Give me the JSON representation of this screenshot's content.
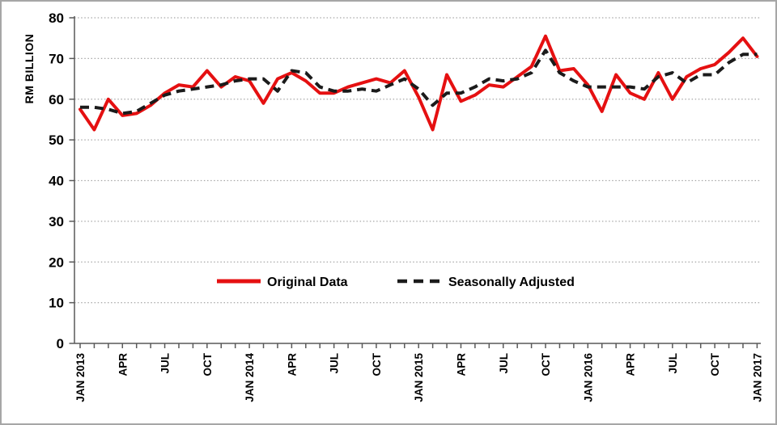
{
  "figure": {
    "background": "#ffffff",
    "border_color": "#a6a6a6"
  },
  "chart_data": {
    "type": "line",
    "title": "",
    "ylabel": "RM BILLION",
    "xlabel": "",
    "ylim": [
      0,
      80
    ],
    "y_ticks": [
      0,
      10,
      20,
      30,
      40,
      50,
      60,
      70,
      80
    ],
    "grid": "horizontal-dotted",
    "grid_color": "#a8a8a8",
    "axis_color": "#595959",
    "n_points": 49,
    "x_frequency": "monthly",
    "x_range": [
      "JAN 2013",
      "JAN 2017"
    ],
    "x_ticks": [
      {
        "index": 0,
        "label": "JAN 2013"
      },
      {
        "index": 3,
        "label": "APR"
      },
      {
        "index": 6,
        "label": "JUL"
      },
      {
        "index": 9,
        "label": "OCT"
      },
      {
        "index": 12,
        "label": "JAN 2014"
      },
      {
        "index": 15,
        "label": "APR"
      },
      {
        "index": 18,
        "label": "JUL"
      },
      {
        "index": 21,
        "label": "OCT"
      },
      {
        "index": 24,
        "label": "JAN 2015"
      },
      {
        "index": 27,
        "label": "APR"
      },
      {
        "index": 30,
        "label": "JUL"
      },
      {
        "index": 33,
        "label": "OCT"
      },
      {
        "index": 36,
        "label": "JAN 2016"
      },
      {
        "index": 39,
        "label": "APR"
      },
      {
        "index": 42,
        "label": "JUL"
      },
      {
        "index": 45,
        "label": "OCT"
      },
      {
        "index": 48,
        "label": "JAN 2017"
      }
    ],
    "legend_position": "inside-lower-center",
    "series": [
      {
        "name": "Original Data",
        "style": "solid",
        "color": "#e51011",
        "values": [
          57.5,
          52.5,
          60,
          56,
          56.5,
          58.5,
          61.5,
          63.5,
          63,
          67,
          63,
          65.5,
          64.5,
          59,
          65,
          66.5,
          64.5,
          61.5,
          61.5,
          63,
          64,
          65,
          64,
          67,
          60.5,
          52.5,
          66,
          59.5,
          61,
          63.5,
          63,
          65.5,
          68,
          75.5,
          67,
          67.5,
          63.5,
          57,
          66,
          61.5,
          60,
          66.5,
          60,
          65.5,
          67.5,
          68.5,
          71.5,
          75,
          70.5
        ]
      },
      {
        "name": "Seasonally Adjusted",
        "style": "dashed",
        "color": "#1b1b1b",
        "values": [
          58,
          58,
          57.5,
          56.5,
          57,
          59,
          61,
          62,
          62.5,
          63,
          63.5,
          64.5,
          65,
          65,
          62,
          67,
          66.5,
          63,
          62,
          62,
          62.5,
          62,
          63.5,
          65,
          62.5,
          58.5,
          61.5,
          61.5,
          63,
          65,
          64.5,
          65,
          66.5,
          72,
          66.5,
          64.5,
          63,
          63,
          63,
          63,
          62.5,
          65.5,
          66.5,
          64,
          66,
          66,
          69,
          71,
          71
        ]
      }
    ]
  }
}
